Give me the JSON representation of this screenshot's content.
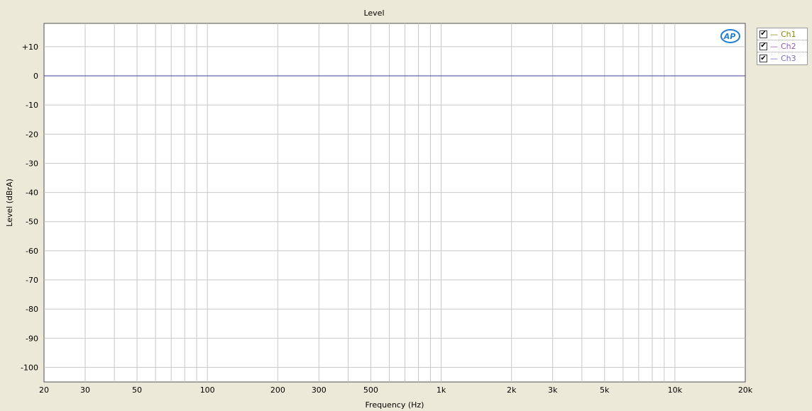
{
  "chart_data": {
    "type": "line",
    "title": "Level",
    "xlabel": "Frequency (Hz)",
    "ylabel": "Level (dBrA)",
    "xscale": "log",
    "xlim": [
      20,
      20000
    ],
    "ylim": [
      -105,
      18
    ],
    "x_ticks": [
      {
        "value": 20,
        "label": "20"
      },
      {
        "value": 30,
        "label": "30"
      },
      {
        "value": 50,
        "label": "50"
      },
      {
        "value": 100,
        "label": "100"
      },
      {
        "value": 200,
        "label": "200"
      },
      {
        "value": 300,
        "label": "300"
      },
      {
        "value": 500,
        "label": "500"
      },
      {
        "value": 1000,
        "label": "1k"
      },
      {
        "value": 2000,
        "label": "2k"
      },
      {
        "value": 3000,
        "label": "3k"
      },
      {
        "value": 5000,
        "label": "5k"
      },
      {
        "value": 10000,
        "label": "10k"
      },
      {
        "value": 20000,
        "label": "20k"
      }
    ],
    "y_ticks": [
      {
        "value": 10,
        "label": "+10"
      },
      {
        "value": 0,
        "label": "0"
      },
      {
        "value": -10,
        "label": "-10"
      },
      {
        "value": -20,
        "label": "-20"
      },
      {
        "value": -30,
        "label": "-30"
      },
      {
        "value": -40,
        "label": "-40"
      },
      {
        "value": -50,
        "label": "-50"
      },
      {
        "value": -60,
        "label": "-60"
      },
      {
        "value": -70,
        "label": "-70"
      },
      {
        "value": -80,
        "label": "-80"
      },
      {
        "value": -90,
        "label": "-90"
      },
      {
        "value": -100,
        "label": "-100"
      }
    ],
    "grid": true,
    "legend_position": "right",
    "series": [
      {
        "name": "Ch1",
        "color": "#8a8a00",
        "checked": true,
        "x": [
          20,
          20000
        ],
        "y": [
          0,
          0
        ]
      },
      {
        "name": "Ch2",
        "color": "#9b59b6",
        "checked": true,
        "x": [
          20,
          20000
        ],
        "y": [
          0,
          0
        ]
      },
      {
        "name": "Ch3",
        "color": "#7b68c8",
        "checked": true,
        "x": [
          20,
          20000
        ],
        "y": [
          0,
          0
        ]
      }
    ]
  },
  "logo_icon": "ap-logo-icon",
  "colors": {
    "background": "#ece9d8",
    "plot_background": "#ffffff",
    "grid": "#c8c8c8",
    "trace": "#3c3c96"
  }
}
